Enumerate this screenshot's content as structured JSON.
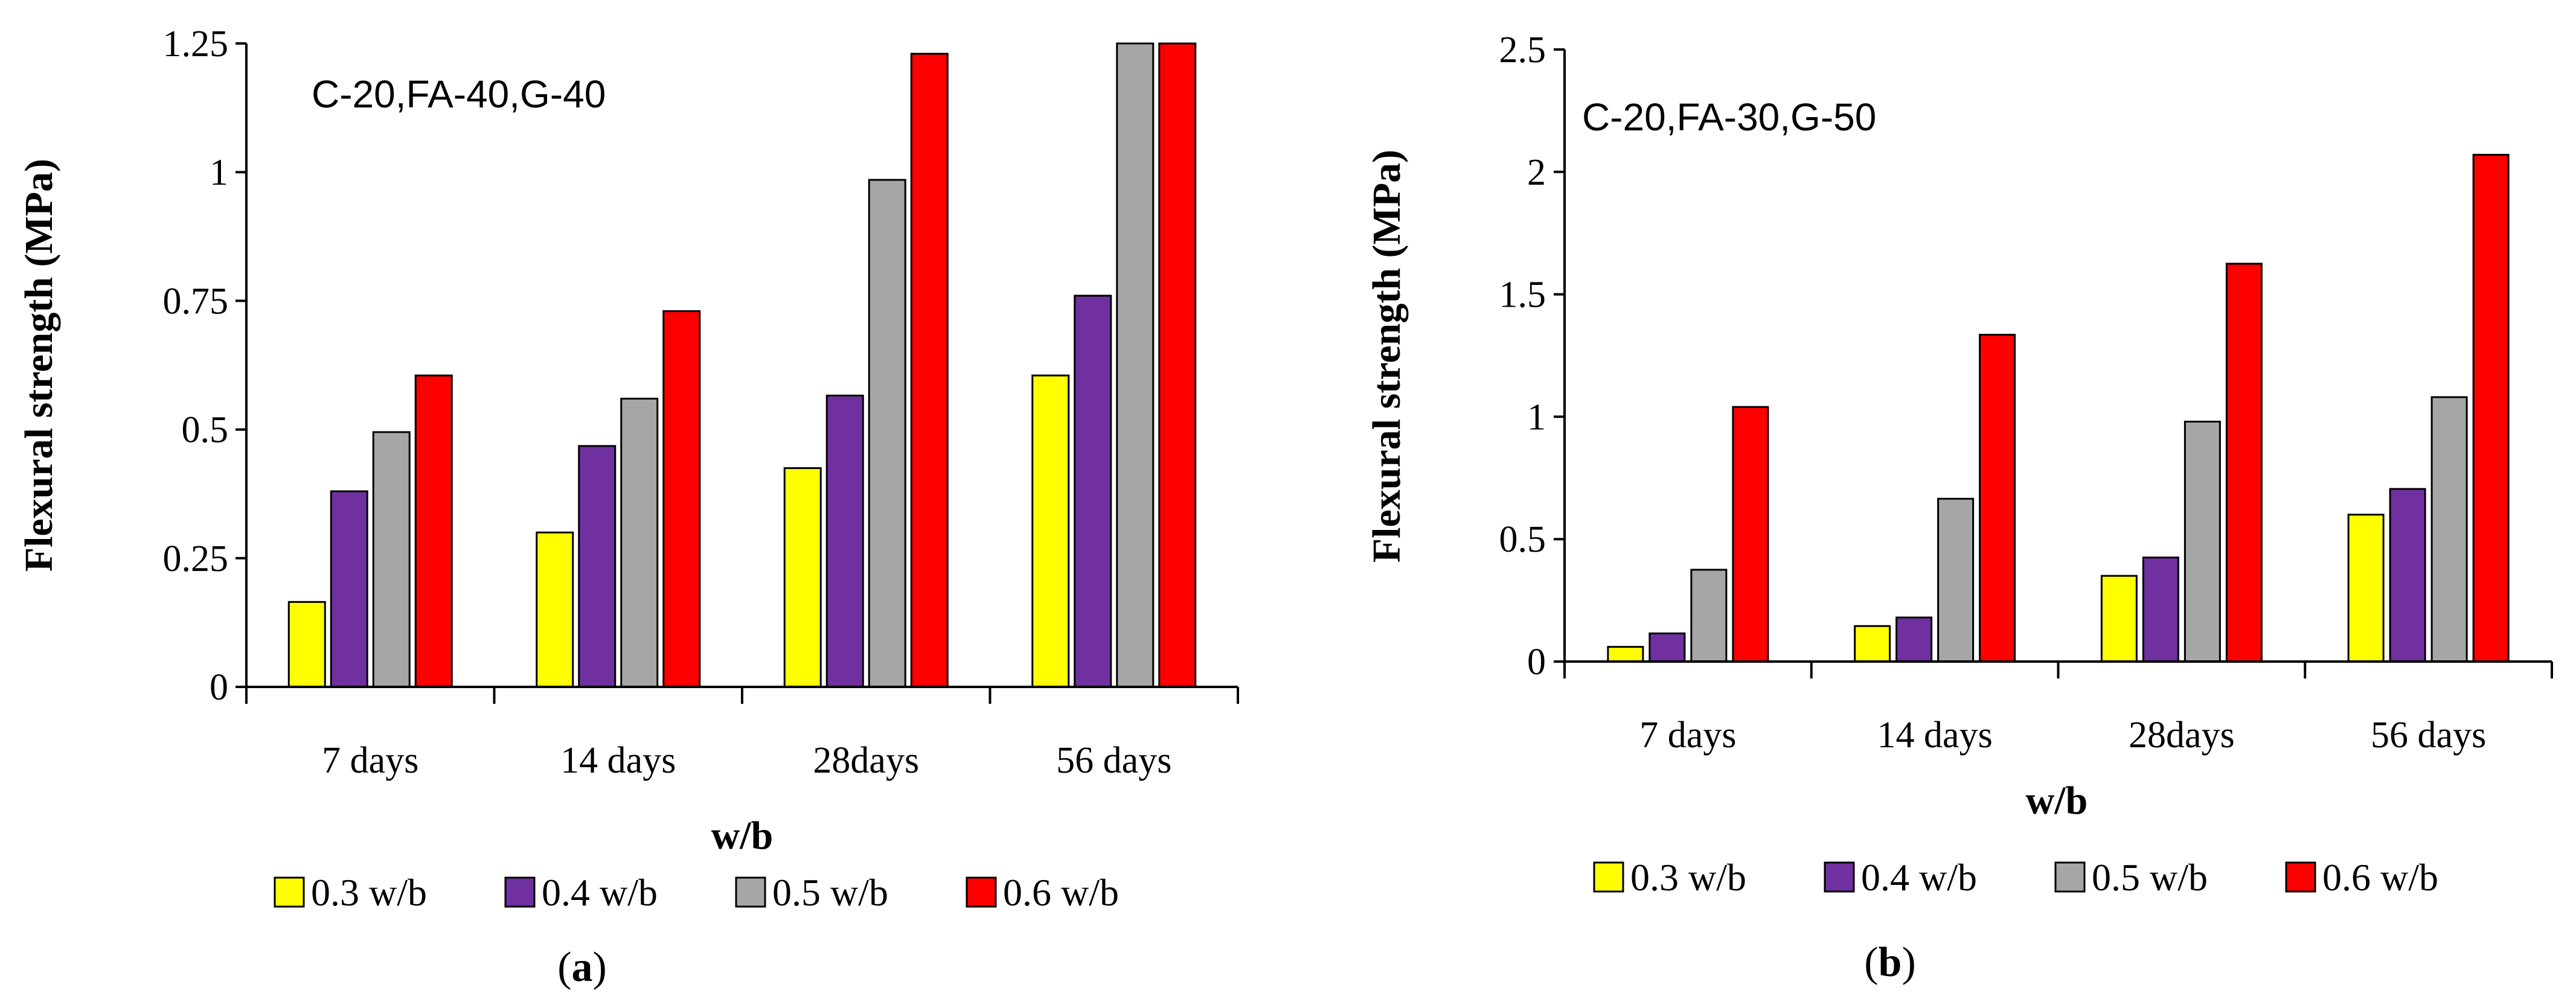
{
  "chart_data": [
    {
      "type": "bar",
      "panel_label": "a",
      "annotation": "C-20,FA-40,G-40",
      "categories": [
        "7 days",
        "14 days",
        "28days",
        "56 days"
      ],
      "series": [
        {
          "name": "0.3 w/b",
          "color": "#FFFF00",
          "values": [
            0.165,
            0.3,
            0.425,
            0.605
          ]
        },
        {
          "name": "0.4 w/b",
          "color": "#7030A0",
          "values": [
            0.38,
            0.468,
            0.566,
            0.76
          ]
        },
        {
          "name": "0.5 w/b",
          "color": "#A6A6A6",
          "values": [
            0.495,
            0.56,
            0.985,
            1.25
          ]
        },
        {
          "name": "0.6 w/b",
          "color": "#FF0000",
          "values": [
            0.605,
            0.73,
            1.23,
            1.25
          ]
        }
      ],
      "xlabel": "w/b",
      "ylabel": "Flexural strength (MPa)",
      "ylim": [
        0,
        1.25
      ],
      "yticks": [
        "0",
        "0.25",
        "0.5",
        "0.75",
        "1",
        "1.25"
      ],
      "grid": false,
      "legend_position": "bottom"
    },
    {
      "type": "bar",
      "panel_label": "b",
      "annotation": "C-20,FA-30,G-50",
      "categories": [
        "7 days",
        "14 days",
        "28days",
        "56 days"
      ],
      "series": [
        {
          "name": "0.3 w/b",
          "color": "#FFFF00",
          "values": [
            0.06,
            0.145,
            0.35,
            0.6
          ]
        },
        {
          "name": "0.4 w/b",
          "color": "#7030A0",
          "values": [
            0.115,
            0.18,
            0.425,
            0.705
          ]
        },
        {
          "name": "0.5 w/b",
          "color": "#A6A6A6",
          "values": [
            0.375,
            0.665,
            0.98,
            1.08
          ]
        },
        {
          "name": "0.6 w/b",
          "color": "#FF0000",
          "values": [
            1.04,
            1.335,
            1.625,
            2.07
          ]
        }
      ],
      "xlabel": "w/b",
      "ylabel": "Flexural strength (MPa)",
      "ylim": [
        0,
        2.5
      ],
      "yticks": [
        "0",
        "0.5",
        "1",
        "1.5",
        "2",
        "2.5"
      ],
      "grid": false,
      "legend_position": "bottom"
    }
  ]
}
